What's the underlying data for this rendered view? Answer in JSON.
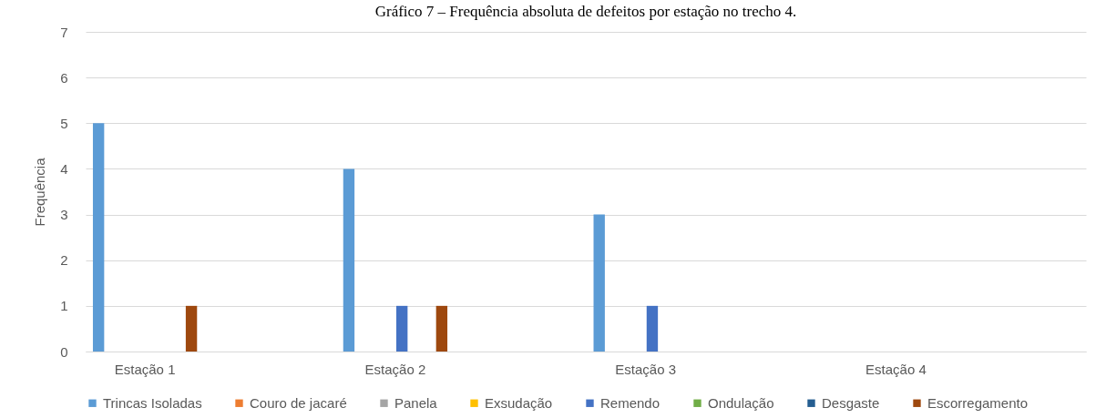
{
  "chart_data": {
    "type": "bar",
    "title": "Gráfico 7 – Frequência absoluta de defeitos por estação no trecho 4.",
    "ylabel": "Frequência",
    "categories": [
      "Estação 1",
      "Estação 2",
      "Estação 3",
      "Estação 4"
    ],
    "series": [
      {
        "name": "Trincas Isoladas",
        "color": "#5b9bd5",
        "values": [
          5,
          4,
          3,
          0
        ]
      },
      {
        "name": "Couro de jacaré",
        "color": "#ed7d31",
        "values": [
          0,
          0,
          0,
          0
        ]
      },
      {
        "name": "Panela",
        "color": "#a5a5a5",
        "values": [
          0,
          0,
          0,
          0
        ]
      },
      {
        "name": "Exsudação",
        "color": "#ffc000",
        "values": [
          0,
          0,
          0,
          0
        ]
      },
      {
        "name": "Remendo",
        "color": "#4472c4",
        "values": [
          0,
          1,
          1,
          0
        ]
      },
      {
        "name": "Ondulação",
        "color": "#70ad47",
        "values": [
          0,
          0,
          0,
          0
        ]
      },
      {
        "name": "Desgaste",
        "color": "#255e91",
        "values": [
          0,
          0,
          0,
          0
        ]
      },
      {
        "name": "Escorregamento",
        "color": "#9e480e",
        "values": [
          1,
          1,
          0,
          0
        ]
      }
    ],
    "ylim": [
      0,
      7
    ],
    "yticks": [
      0,
      1,
      2,
      3,
      4,
      5,
      6,
      7
    ],
    "grid": "y",
    "legend": "bottom"
  }
}
